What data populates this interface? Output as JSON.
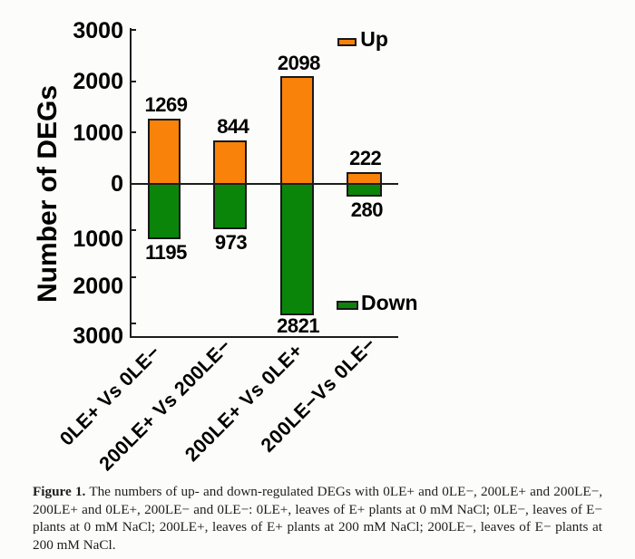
{
  "chart_data": {
    "type": "bar",
    "subtype": "diverging-stacked",
    "title": "",
    "xlabel": "",
    "ylabel": "Number of DEGs",
    "categories": [
      "0LE+ Vs 0LE−",
      "200LE+ Vs 200LE−",
      "200LE+ Vs 0LE+",
      "200LE−Vs 0LE−"
    ],
    "series": [
      {
        "name": "Up",
        "direction": "positive",
        "color": "#f8820a",
        "values": [
          1269,
          844,
          2098,
          222
        ]
      },
      {
        "name": "Down",
        "direction": "negative",
        "color": "#0a850a",
        "values": [
          1195,
          973,
          2821,
          280
        ]
      }
    ],
    "value_labels_shown": true,
    "y_axis": {
      "label": "Number of DEGs",
      "tick_labels": [
        "3000",
        "2000",
        "1000",
        "0",
        "1000",
        "2000",
        "3000"
      ],
      "tick_values": [
        3000,
        2000,
        1000,
        0,
        -1000,
        -2000,
        -3000
      ],
      "ylim": [
        -3000,
        3000
      ],
      "grid": false
    },
    "legend": {
      "position": "inside-right",
      "entries": [
        {
          "label": "Up",
          "color": "#f8820a"
        },
        {
          "label": "Down",
          "color": "#0a850a"
        }
      ]
    }
  },
  "caption": {
    "label": "Figure 1.",
    "lines": [
      "The numbers of up- and down-regulated DEGs with 0LE+ and 0LE−, 200LE+ and 200LE−,",
      "200LE+ and 0LE+, 200LE− and 0LE−: 0LE+, leaves of E+ plants at 0 mM NaCl; 0LE−, leaves of E−",
      "plants at 0 mM NaCl; 200LE+, leaves of E+ plants at 200 mM NaCl; 200LE−, leaves of E− plants at",
      "200 mM NaCl."
    ]
  }
}
